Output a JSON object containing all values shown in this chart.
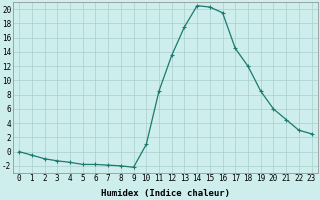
{
  "x": [
    0,
    1,
    2,
    3,
    4,
    5,
    6,
    7,
    8,
    9,
    10,
    11,
    12,
    13,
    14,
    15,
    16,
    17,
    18,
    19,
    20,
    21,
    22,
    23
  ],
  "y": [
    0,
    -0.5,
    -1.0,
    -1.3,
    -1.5,
    -1.8,
    -1.8,
    -1.9,
    -2.0,
    -2.2,
    1.0,
    8.5,
    13.5,
    17.5,
    20.5,
    20.3,
    19.5,
    14.5,
    12.0,
    8.5,
    6.0,
    4.5,
    3.0,
    2.5
  ],
  "line_color": "#1a7a6e",
  "marker": "+",
  "marker_size": 3,
  "marker_linewidth": 0.8,
  "bg_color": "#ceeeed",
  "grid_color": "#aacfcf",
  "xlabel": "Humidex (Indice chaleur)",
  "ylim": [
    -3,
    21
  ],
  "xlim": [
    -0.5,
    23.5
  ],
  "yticks": [
    -2,
    0,
    2,
    4,
    6,
    8,
    10,
    12,
    14,
    16,
    18,
    20
  ],
  "xticks": [
    0,
    1,
    2,
    3,
    4,
    5,
    6,
    7,
    8,
    9,
    10,
    11,
    12,
    13,
    14,
    15,
    16,
    17,
    18,
    19,
    20,
    21,
    22,
    23
  ],
  "xlabel_fontsize": 6.5,
  "tick_fontsize": 5.5,
  "line_width": 0.9
}
